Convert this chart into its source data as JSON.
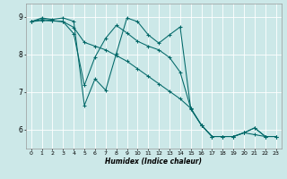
{
  "xlabel": "Humidex (Indice chaleur)",
  "bg_color": "#cce8e8",
  "line_color": "#006868",
  "grid_color": "#ffffff",
  "xlim": [
    -0.5,
    23.5
  ],
  "ylim": [
    5.5,
    9.35
  ],
  "yticks": [
    6,
    7,
    8,
    9
  ],
  "xtick_labels": [
    "0",
    "1",
    "2",
    "3",
    "4",
    "5",
    "6",
    "7",
    "8",
    "9",
    "10",
    "11",
    "12",
    "13",
    "14",
    "15",
    "16",
    "17",
    "18",
    "19",
    "20",
    "21",
    "22",
    "23"
  ],
  "lines": [
    [
      8.87,
      8.97,
      8.93,
      8.97,
      8.88,
      6.65,
      7.35,
      7.05,
      8.02,
      8.97,
      8.87,
      8.52,
      8.3,
      8.52,
      8.73,
      6.55,
      6.12,
      5.82,
      5.82,
      5.82,
      5.92,
      6.05,
      5.82,
      5.82
    ],
    [
      8.87,
      8.93,
      8.9,
      8.87,
      8.55,
      7.18,
      7.93,
      8.43,
      8.77,
      8.57,
      8.35,
      8.22,
      8.12,
      7.92,
      7.53,
      6.57,
      6.12,
      5.82,
      5.82,
      5.82,
      5.92,
      5.87,
      5.82,
      5.82
    ],
    [
      8.87,
      8.9,
      8.89,
      8.87,
      8.72,
      8.32,
      8.22,
      8.12,
      7.97,
      7.82,
      7.62,
      7.42,
      7.22,
      7.02,
      6.82,
      6.57,
      6.12,
      5.82,
      5.82,
      5.82,
      5.92,
      6.05,
      5.82,
      5.82
    ]
  ]
}
